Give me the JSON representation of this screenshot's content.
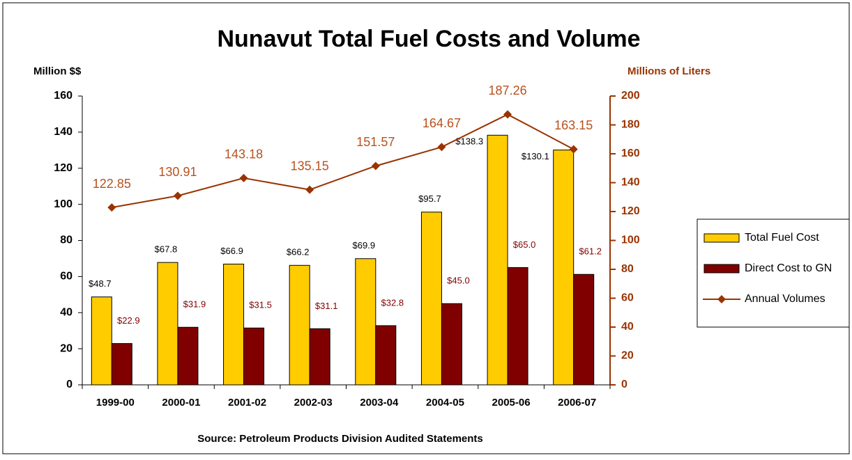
{
  "chart_data": {
    "type": "bar_line",
    "title": "Nunavut Total Fuel Costs and Volume",
    "y_label": "Million $$",
    "y2_label": "Millions of Liters",
    "source": "Source: Petroleum Products Division Audited Statements",
    "categories": [
      "1999-00",
      "2000-01",
      "2001-02",
      "2002-03",
      "2003-04",
      "2004-05",
      "2005-06",
      "2006-07"
    ],
    "ylim": [
      0,
      160
    ],
    "yticks": [
      0,
      20,
      40,
      60,
      80,
      100,
      120,
      140,
      160
    ],
    "y2lim": [
      0,
      200
    ],
    "y2ticks": [
      0,
      20,
      40,
      60,
      80,
      100,
      120,
      140,
      160,
      180,
      200
    ],
    "legend": "right",
    "series": [
      {
        "name": "Total Fuel Cost",
        "color": "#ffcc00",
        "kind": "bar",
        "values": [
          48.7,
          67.8,
          66.9,
          66.2,
          69.9,
          95.7,
          138.3,
          130.1
        ],
        "value_labels": [
          "$48.7",
          "$67.8",
          "$66.9",
          "$66.2",
          "$69.9",
          "$95.7",
          "$138.3",
          "$130.1"
        ]
      },
      {
        "name": "Direct Cost to GN",
        "color": "#800000",
        "kind": "bar",
        "values": [
          22.9,
          31.9,
          31.5,
          31.1,
          32.8,
          45.0,
          65.0,
          61.2
        ],
        "value_labels": [
          "$22.9",
          "$31.9",
          "$31.5",
          "$31.1",
          "$32.8",
          "$45.0",
          "$65.0",
          "$61.2"
        ]
      },
      {
        "name": "Annual Volumes",
        "color": "#993300",
        "kind": "line",
        "axis": "y2",
        "values": [
          122.85,
          130.91,
          143.18,
          135.15,
          151.57,
          164.67,
          187.26,
          163.15
        ]
      }
    ]
  }
}
